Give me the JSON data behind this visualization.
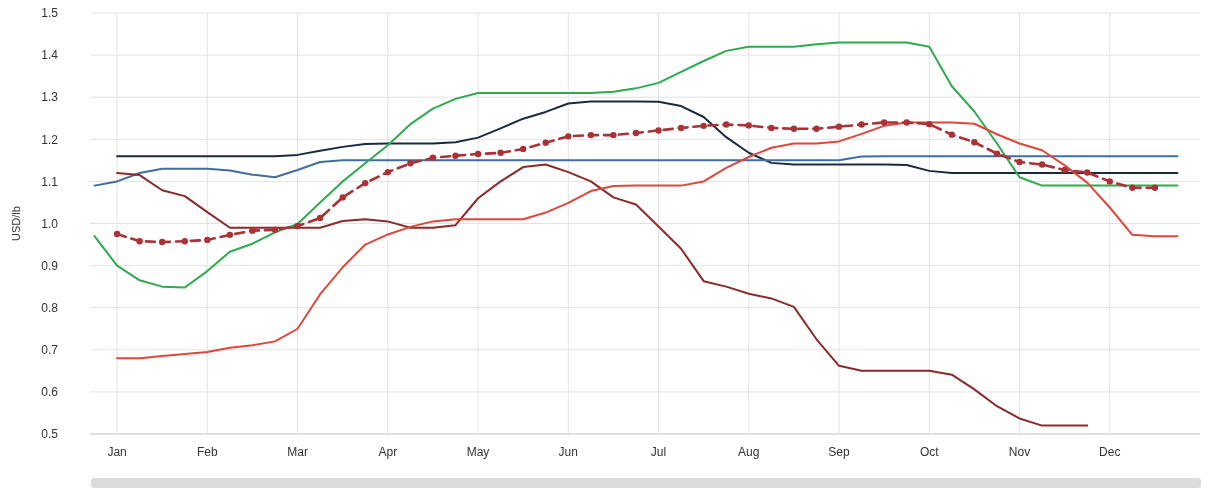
{
  "chart_data": {
    "type": "line",
    "ylabel": "USD/lb",
    "ylim": [
      0.5,
      1.5
    ],
    "categories": [
      null,
      "Jan",
      null,
      null,
      null,
      "Feb",
      null,
      null,
      null,
      "Mar",
      null,
      null,
      null,
      "Apr",
      null,
      null,
      null,
      "May",
      null,
      null,
      null,
      "Jun",
      null,
      null,
      null,
      "Jul",
      null,
      null,
      null,
      "Aug",
      null,
      null,
      null,
      "Sep",
      null,
      null,
      null,
      "Oct",
      null,
      null,
      null,
      "Nov",
      null,
      null,
      null,
      "Dec",
      null,
      null,
      null
    ],
    "yticks": [
      {
        "value": 0.5,
        "label": "0.5"
      },
      {
        "value": 0.6,
        "label": "0.6"
      },
      {
        "value": 0.7,
        "label": "0.7"
      },
      {
        "value": 0.8,
        "label": "0.8"
      },
      {
        "value": 0.9,
        "label": "0.9"
      },
      {
        "value": 1.0,
        "label": "1.0"
      },
      {
        "value": 1.1,
        "label": "1.1"
      },
      {
        "value": 1.2,
        "label": "1.2"
      },
      {
        "value": 1.3,
        "label": "1.3"
      },
      {
        "value": 1.4,
        "label": "1.4"
      },
      {
        "value": 1.5,
        "label": "1.5"
      }
    ],
    "grid": true,
    "series": [
      {
        "color": "#1b2a41",
        "values": [
          null,
          1.16,
          1.16,
          1.16,
          1.16,
          1.16,
          1.16,
          1.16,
          1.16,
          1.163,
          1.173,
          1.182,
          1.189,
          1.19,
          1.19,
          1.19,
          1.193,
          1.204,
          1.226,
          1.249,
          1.265,
          1.285,
          1.29,
          1.29,
          1.29,
          1.289,
          1.279,
          1.253,
          1.205,
          1.168,
          1.144,
          1.14,
          1.14,
          1.14,
          1.14,
          1.14,
          1.139,
          1.125,
          1.12,
          1.12,
          1.12,
          1.12,
          1.12,
          1.12,
          1.12,
          1.12,
          1.12,
          1.12,
          1.12
        ]
      },
      {
        "color": "#3f6fa0",
        "values": [
          1.09,
          1.1,
          1.12,
          1.13,
          1.13,
          1.13,
          1.126,
          1.116,
          1.11,
          1.127,
          1.146,
          1.15,
          1.15,
          1.15,
          1.15,
          1.15,
          1.15,
          1.15,
          1.15,
          1.15,
          1.15,
          1.15,
          1.15,
          1.15,
          1.15,
          1.15,
          1.15,
          1.15,
          1.15,
          1.15,
          1.15,
          1.15,
          1.15,
          1.15,
          1.159,
          1.16,
          1.16,
          1.16,
          1.16,
          1.16,
          1.16,
          1.16,
          1.16,
          1.16,
          1.16,
          1.16,
          1.16,
          1.16,
          1.16
        ]
      },
      {
        "color": "#2eaa4f",
        "values": [
          0.97,
          0.9,
          0.865,
          0.85,
          0.848,
          0.887,
          0.933,
          0.952,
          0.979,
          0.999,
          1.05,
          1.1,
          1.143,
          1.186,
          1.236,
          1.273,
          1.296,
          1.31,
          1.31,
          1.31,
          1.31,
          1.31,
          1.31,
          1.313,
          1.321,
          1.334,
          1.36,
          1.386,
          1.41,
          1.42,
          1.42,
          1.42,
          1.426,
          1.43,
          1.43,
          1.43,
          1.43,
          1.42,
          1.326,
          1.266,
          1.19,
          1.11,
          1.09,
          1.09,
          1.09,
          1.09,
          1.09,
          1.09,
          1.09
        ]
      },
      {
        "color": "#8b2a2a",
        "values": [
          null,
          1.12,
          1.115,
          1.079,
          1.065,
          1.027,
          0.99,
          0.99,
          0.99,
          0.99,
          0.99,
          1.006,
          1.01,
          1.005,
          0.99,
          0.99,
          0.996,
          1.06,
          1.1,
          1.134,
          1.14,
          1.122,
          1.1,
          1.062,
          1.045,
          0.993,
          0.94,
          0.863,
          0.85,
          0.833,
          0.822,
          0.802,
          0.725,
          0.662,
          0.65,
          0.65,
          0.65,
          0.65,
          0.641,
          0.606,
          0.566,
          0.537,
          0.52,
          0.52,
          0.52,
          null,
          null,
          null,
          null
        ]
      },
      {
        "color": "#e0473c",
        "values": [
          null,
          0.68,
          0.68,
          0.685,
          0.69,
          0.695,
          0.705,
          0.711,
          0.72,
          0.75,
          0.832,
          0.896,
          0.95,
          0.974,
          0.992,
          1.005,
          1.01,
          1.01,
          1.01,
          1.01,
          1.026,
          1.049,
          1.077,
          1.089,
          1.09,
          1.09,
          1.09,
          1.1,
          1.132,
          1.158,
          1.18,
          1.19,
          1.19,
          1.195,
          1.213,
          1.232,
          1.24,
          1.24,
          1.24,
          1.237,
          1.212,
          1.19,
          1.174,
          1.138,
          1.097,
          1.038,
          0.973,
          0.97,
          0.97
        ]
      },
      {
        "color": "#a83236",
        "line_style": "dashed",
        "marker": "circle",
        "values": [
          null,
          0.975,
          0.958,
          0.956,
          0.958,
          0.961,
          0.973,
          0.983,
          0.985,
          0.994,
          1.013,
          1.062,
          1.096,
          1.122,
          1.143,
          1.156,
          1.161,
          1.165,
          1.168,
          1.177,
          1.192,
          1.207,
          1.21,
          1.21,
          1.215,
          1.221,
          1.227,
          1.232,
          1.235,
          1.233,
          1.227,
          1.225,
          1.225,
          1.23,
          1.235,
          1.24,
          1.24,
          1.236,
          1.211,
          1.193,
          1.166,
          1.146,
          1.14,
          1.127,
          1.121,
          1.1,
          1.085,
          1.085,
          null
        ]
      }
    ]
  }
}
